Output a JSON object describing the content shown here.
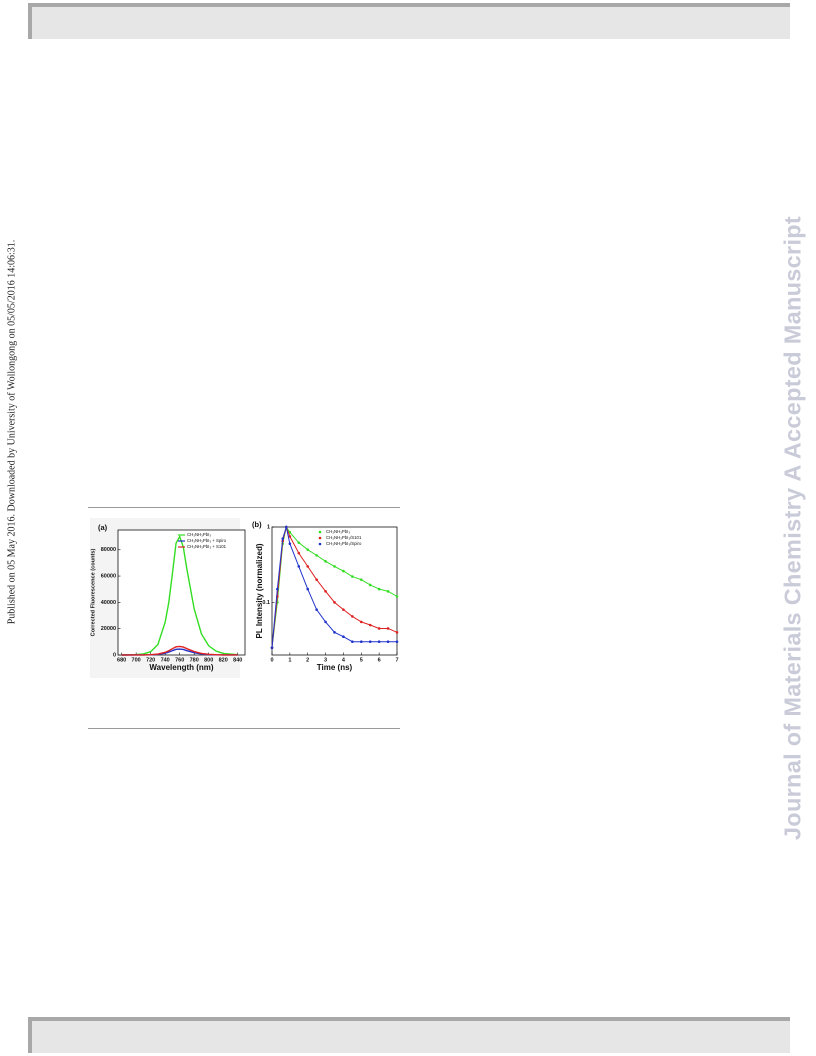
{
  "side_note": "Published on 05 May 2016. Downloaded by University of Wollongong on 05/05/2016 14:06:31.",
  "watermark": "Journal of Materials Chemistry A Accepted Manuscript",
  "chart_data": [
    {
      "type": "line",
      "panel": "(a)",
      "x_label": "Wavelength (nm)",
      "y_label": "Corrected Fluorescence (counts)",
      "x": [
        680,
        700,
        710,
        720,
        730,
        740,
        745,
        750,
        755,
        760,
        765,
        770,
        780,
        790,
        800,
        810,
        820,
        840
      ],
      "series": [
        {
          "name": "CH₃NH₃PbI₃",
          "color": "#33dd22",
          "values": [
            0,
            300,
            800,
            2500,
            8000,
            25000,
            40000,
            62000,
            85000,
            90000,
            82000,
            65000,
            35000,
            16000,
            7000,
            3000,
            1200,
            200
          ]
        },
        {
          "name": "CH₃NH₃PbI₃ + Spiro",
          "color": "#2233cc",
          "values": [
            0,
            20,
            60,
            170,
            500,
            1400,
            2200,
            3300,
            4300,
            4500,
            4200,
            3300,
            1800,
            800,
            350,
            140,
            60,
            10
          ]
        },
        {
          "name": "CH₃NH₃PbI₃ + S101",
          "color": "#dd2222",
          "values": [
            0,
            30,
            80,
            250,
            700,
            2000,
            3200,
            4800,
            6200,
            6500,
            6000,
            4800,
            2600,
            1200,
            500,
            200,
            80,
            10
          ]
        }
      ],
      "xlim": [
        675,
        850
      ],
      "xticks": [
        680,
        700,
        720,
        740,
        760,
        780,
        800,
        820,
        840
      ],
      "ylim": [
        0,
        95000
      ],
      "yticks": [
        0,
        20000,
        40000,
        60000,
        80000
      ],
      "legend": "upper right",
      "grid": false
    },
    {
      "type": "scatter",
      "panel": "(b)",
      "x_label": "Time (ns)",
      "y_label": "PL Intensity (normalized)",
      "x": [
        0,
        0.3,
        0.6,
        0.8,
        1,
        1.5,
        2,
        2.5,
        3,
        3.5,
        4,
        4.5,
        5,
        5.5,
        6,
        6.5,
        7
      ],
      "series": [
        {
          "name": "CH₃NH₃PbI₃",
          "color": "#33dd22",
          "values": [
            0.025,
            0.1,
            0.6,
            1,
            0.85,
            0.62,
            0.5,
            0.42,
            0.35,
            0.3,
            0.26,
            0.22,
            0.2,
            0.17,
            0.15,
            0.14,
            0.12
          ]
        },
        {
          "name": "CH₃NH₃PbI₃/S101",
          "color": "#dd2222",
          "values": [
            0.025,
            0.12,
            0.65,
            1,
            0.75,
            0.45,
            0.3,
            0.2,
            0.14,
            0.1,
            0.08,
            0.065,
            0.055,
            0.05,
            0.045,
            0.045,
            0.04
          ]
        },
        {
          "name": "CH₃NH₃PbI₃/Spiro",
          "color": "#2233cc",
          "values": [
            0.025,
            0.15,
            0.7,
            1,
            0.6,
            0.3,
            0.15,
            0.08,
            0.055,
            0.04,
            0.035,
            0.03,
            0.03,
            0.03,
            0.03,
            0.03,
            0.03
          ]
        }
      ],
      "xlim": [
        0,
        7
      ],
      "xticks": [
        0,
        1,
        2,
        3,
        4,
        5,
        6,
        7
      ],
      "ylim": [
        0.02,
        1
      ],
      "yticks": [
        0.1,
        1
      ],
      "log_y": true,
      "legend": "upper right",
      "grid": false
    }
  ]
}
